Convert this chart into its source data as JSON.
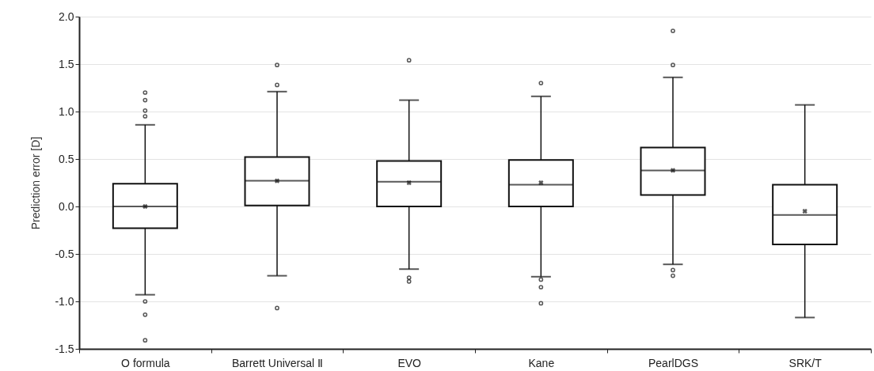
{
  "chart_data": {
    "type": "box",
    "ylabel": "Prediction error [D]",
    "categories": [
      "O formula",
      "Barrett Universal Ⅱ",
      "EVO",
      "Kane",
      "PearlDGS",
      "SRK/T"
    ],
    "boxes": [
      {
        "low": -0.93,
        "q1": -0.23,
        "median": 0.0,
        "q3": 0.24,
        "high": 0.86,
        "mean": 0.0,
        "outliers": [
          1.2,
          1.12,
          1.01,
          0.95,
          -1.0,
          -1.14,
          -1.41
        ]
      },
      {
        "low": -0.73,
        "q1": 0.01,
        "median": 0.27,
        "q3": 0.52,
        "high": 1.21,
        "mean": 0.27,
        "outliers": [
          1.49,
          1.28,
          -1.07
        ]
      },
      {
        "low": -0.66,
        "q1": 0.0,
        "median": 0.26,
        "q3": 0.48,
        "high": 1.12,
        "mean": 0.25,
        "outliers": [
          1.54,
          -0.75,
          -0.79
        ]
      },
      {
        "low": -0.74,
        "q1": 0.0,
        "median": 0.23,
        "q3": 0.49,
        "high": 1.16,
        "mean": 0.25,
        "outliers": [
          1.3,
          -0.77,
          -0.85,
          -1.02
        ]
      },
      {
        "low": -0.61,
        "q1": 0.12,
        "median": 0.38,
        "q3": 0.62,
        "high": 1.36,
        "mean": 0.38,
        "outliers": [
          1.85,
          1.49,
          -0.67,
          -0.73
        ]
      },
      {
        "low": -1.17,
        "q1": -0.4,
        "median": -0.09,
        "q3": 0.23,
        "high": 1.07,
        "mean": -0.05
      }
    ],
    "ylim": [
      -1.5,
      2.0
    ],
    "yticks": [
      {
        "value": -1.5,
        "label": "-1.5"
      },
      {
        "value": -1.0,
        "label": "-1.0"
      },
      {
        "value": -0.5,
        "label": "-0.5"
      },
      {
        "value": 0,
        "label": "0.0"
      },
      {
        "value": 0.5,
        "label": "0.5"
      },
      {
        "value": 1.0,
        "label": "1.0"
      },
      {
        "value": 1.5,
        "label": "1.5"
      },
      {
        "value": 2.0,
        "label": "2.0"
      }
    ],
    "grid": "y"
  }
}
